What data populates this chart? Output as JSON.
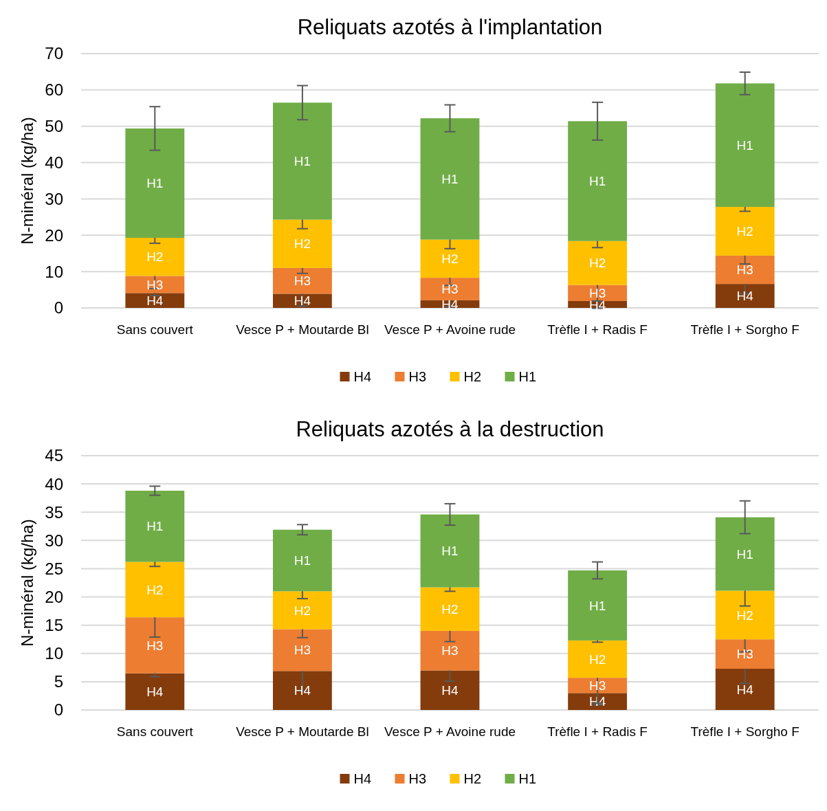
{
  "chart_data": [
    {
      "type": "bar",
      "title": "Reliquats azotés à l'implantation",
      "ylabel": "N-minéral (kg/ha)",
      "stacked": true,
      "categories": [
        "Sans couvert",
        "Vesce P + Moutarde Bl",
        "Vesce P + Avoine rude",
        "Trèfle I + Radis F",
        "Trèfle I + Sorgho F"
      ],
      "series": [
        {
          "name": "H4",
          "color": "#843c0c",
          "values": [
            4.1,
            3.9,
            2.1,
            1.9,
            6.6
          ],
          "errors": [
            0.7,
            3.4,
            1.8,
            2.0,
            2.7
          ]
        },
        {
          "name": "H3",
          "color": "#ed7d31",
          "values": [
            4.7,
            7.1,
            6.2,
            4.4,
            7.8
          ],
          "errors": [
            3.5,
            1.5,
            2.1,
            4.4,
            2.3
          ]
        },
        {
          "name": "H2",
          "color": "#ffc000",
          "values": [
            10.5,
            13.3,
            10.5,
            12.1,
            13.4
          ],
          "errors": [
            1.5,
            2.5,
            2.5,
            1.8,
            1.2
          ]
        },
        {
          "name": "H1",
          "color": "#70ad47",
          "values": [
            30.1,
            32.2,
            33.4,
            33.0,
            34.0
          ],
          "errors": [
            6.0,
            4.7,
            3.7,
            5.2,
            3.1
          ]
        }
      ],
      "ylim": [
        0,
        70
      ],
      "yticks": [
        0,
        10,
        20,
        30,
        40,
        50,
        60,
        70
      ],
      "grid": "y",
      "legend": "bottom"
    },
    {
      "type": "bar",
      "title": "Reliquats azotés à la destruction",
      "ylabel": "N-minéral (kg/ha)",
      "stacked": true,
      "categories": [
        "Sans couvert",
        "Vesce P + Moutarde Bl",
        "Vesce P + Avoine rude",
        "Trèfle I + Radis F",
        "Trèfle I + Sorgho F"
      ],
      "series": [
        {
          "name": "H4",
          "color": "#843c0c",
          "values": [
            6.5,
            6.9,
            7.0,
            3.0,
            7.3
          ],
          "errors": [
            0.6,
            3.5,
            1.9,
            2.1,
            2.6
          ]
        },
        {
          "name": "H3",
          "color": "#ed7d31",
          "values": [
            9.9,
            7.4,
            7.0,
            2.7,
            5.2
          ],
          "errors": [
            3.5,
            1.5,
            1.9,
            4.5,
            2.2
          ]
        },
        {
          "name": "H2",
          "color": "#ffc000",
          "values": [
            9.8,
            6.7,
            7.7,
            6.6,
            8.6
          ],
          "errors": [
            0.8,
            1.3,
            0.7,
            0.3,
            2.7
          ]
        },
        {
          "name": "H1",
          "color": "#70ad47",
          "values": [
            12.6,
            10.9,
            12.9,
            12.4,
            13.0
          ],
          "errors": [
            0.8,
            0.9,
            1.9,
            1.5,
            2.9
          ]
        }
      ],
      "ylim": [
        0,
        45
      ],
      "yticks": [
        0,
        5,
        10,
        15,
        20,
        25,
        30,
        35,
        40,
        45
      ],
      "grid": "y",
      "legend": "bottom"
    }
  ]
}
